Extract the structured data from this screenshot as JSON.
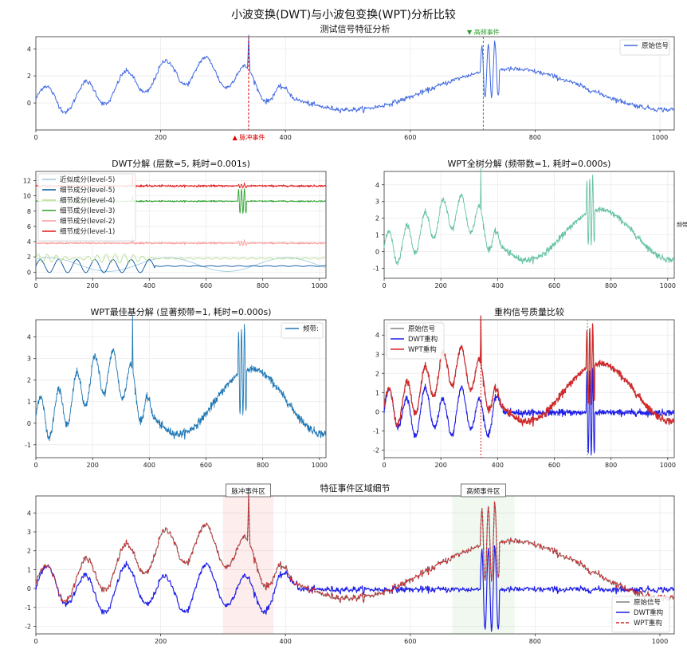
{
  "figure": {
    "suptitle": "小波变换(DWT)与小波包变换(WPT)分析比较"
  },
  "colors": {
    "signal": "#4169e1",
    "dwt": "#1f1fe8",
    "wpt": "#d62728",
    "orig_gray": "#808080",
    "wpt_full": "#66c2a5",
    "wpt_best": "#1f77b4",
    "pulse": "#e00000",
    "hf": "#2ca02c"
  },
  "chart_data": [
    {
      "id": "signal",
      "type": "line",
      "title": "测试信号特征分析",
      "xlim": [
        0,
        1023
      ],
      "ylim": [
        -2,
        4.9
      ],
      "xticks": [
        0,
        200,
        400,
        600,
        800,
        1000
      ],
      "yticks": [
        0,
        2,
        4
      ],
      "grid": true,
      "legend_position": "top-right",
      "series": [
        {
          "name": "原始信号",
          "color": "#4169e1",
          "components": {
            "sine_amp": 1.0,
            "sine_period": 64,
            "sine_end": 400,
            "trend_amp": 1.5,
            "trend_period": 512,
            "trend_offset": 1.0,
            "noise": 0.1,
            "pulse_at": 341,
            "pulse_height": 2.5,
            "hf_range": [
              712,
              742
            ],
            "hf_amp": 2.0
          }
        }
      ],
      "annotations": [
        {
          "label": "▲ 脉冲事件",
          "x": 341,
          "color": "#e00000",
          "position": "bottom"
        },
        {
          "label": "▼ 高频事件",
          "x": 717,
          "color": "#2ca02c",
          "position": "top"
        }
      ]
    },
    {
      "id": "dwt",
      "type": "line",
      "title": "DWT分解 (层数=5, 耗时=0.001s)",
      "xlim": [
        0,
        1023
      ],
      "ylim": [
        -0.8,
        13.2
      ],
      "xticks": [
        0,
        200,
        400,
        600,
        800,
        1000
      ],
      "yticks": [
        0,
        2,
        4,
        6,
        8,
        10,
        12
      ],
      "grid": true,
      "legend_position": "top-left",
      "series": [
        {
          "name": "近似成分(level-5)",
          "color": "#9ecae1",
          "offset": 1.0
        },
        {
          "name": "细节成分(level-5)",
          "color": "#08519c",
          "offset": 0.8
        },
        {
          "name": "细节成分(level-4)",
          "color": "#b5de8c",
          "offset": 1.8
        },
        {
          "name": "细节成分(level-3)",
          "color": "#2ca02c",
          "offset": 9.3
        },
        {
          "name": "细节成分(level-2)",
          "color": "#fb9a99",
          "offset": 3.8
        },
        {
          "name": "细节成分(level-1)",
          "color": "#e31a1c",
          "offset": 11.3
        }
      ]
    },
    {
      "id": "wpt_full",
      "type": "line",
      "title": "WPT全树分解 (频带数=1, 耗时=0.000s)",
      "xlim": [
        0,
        1023
      ],
      "ylim": [
        -1.6,
        4.8
      ],
      "xticks": [
        0,
        200,
        400,
        600,
        800,
        1000
      ],
      "yticks": [
        -1,
        0,
        1,
        2,
        3,
        4
      ],
      "grid": true,
      "side_label": "频带",
      "series": [
        {
          "name": "",
          "color": "#66c2a5"
        }
      ]
    },
    {
      "id": "wpt_best",
      "type": "line",
      "title": "WPT最佳基分解 (显著频带=1, 耗时=0.000s)",
      "xlim": [
        0,
        1023
      ],
      "ylim": [
        -1.6,
        4.8
      ],
      "xticks": [
        0,
        200,
        400,
        600,
        800,
        1000
      ],
      "yticks": [
        -1,
        0,
        1,
        2,
        3,
        4
      ],
      "grid": true,
      "legend_position": "top-right",
      "series": [
        {
          "name": "频带:",
          "color": "#1f77b4"
        }
      ]
    },
    {
      "id": "recon",
      "type": "line",
      "title": "重构信号质量比较",
      "xlim": [
        0,
        1023
      ],
      "ylim": [
        -2.4,
        4.8
      ],
      "xticks": [
        0,
        200,
        400,
        600,
        800,
        1000
      ],
      "yticks": [
        -2,
        -1,
        0,
        1,
        2,
        3,
        4
      ],
      "grid": true,
      "legend_position": "top-left",
      "series": [
        {
          "name": "原始信号",
          "color": "#808080"
        },
        {
          "name": "DWT重构",
          "color": "#1f1fe8"
        },
        {
          "name": "WPT重构",
          "color": "#d62728"
        }
      ],
      "vlines": [
        {
          "x": 341,
          "color": "#e00000"
        },
        {
          "x": 717,
          "color": "#2ca02c"
        }
      ]
    },
    {
      "id": "detail",
      "type": "line",
      "title": "特征事件区域细节",
      "xlim": [
        0,
        1023
      ],
      "ylim": [
        -2.4,
        4.9
      ],
      "xticks": [
        0,
        200,
        400,
        600,
        800,
        1000
      ],
      "yticks": [
        -2,
        -1,
        0,
        1,
        2,
        3,
        4
      ],
      "grid": true,
      "legend_position": "bottom-right",
      "series": [
        {
          "name": "原始信号",
          "color": "#808080",
          "style": "solid"
        },
        {
          "name": "DWT重构",
          "color": "#1f1fe8",
          "style": "solid"
        },
        {
          "name": "WPT重构",
          "color": "#d62728",
          "style": "dashed"
        }
      ],
      "regions": [
        {
          "label": "脉冲事件区",
          "x": [
            300,
            381
          ],
          "color": "#e00000"
        },
        {
          "label": "高频事件区",
          "x": [
            667,
            767
          ],
          "color": "#2ca02c"
        }
      ]
    }
  ]
}
